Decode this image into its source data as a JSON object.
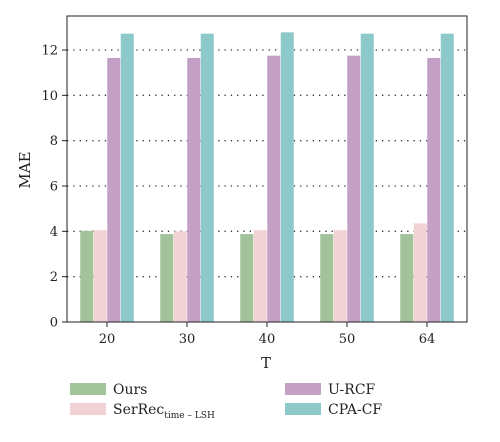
{
  "chart_data": {
    "type": "bar",
    "xlabel": "T",
    "ylabel": "MAE",
    "categories": [
      "20",
      "30",
      "40",
      "50",
      "64"
    ],
    "ylim": [
      0,
      13.5
    ],
    "yticks": [
      "0",
      "2",
      "4",
      "6",
      "8",
      "10",
      "12"
    ],
    "grid": "horizontal dotted",
    "legend_position": "bottom",
    "series": [
      {
        "name": "Ours",
        "legend_main": "SerRec",
        "color": "#a3c49a",
        "values": [
          4.02,
          3.88,
          3.88,
          3.88,
          3.88
        ]
      },
      {
        "name": "SerRec time – LSH",
        "legend_main": "SerRec",
        "legend_sub": "time – LSH",
        "color": "#f1d2d5",
        "values": [
          4.05,
          4.0,
          4.05,
          4.05,
          4.35
        ]
      },
      {
        "name": "U-RCF",
        "color": "#c3a0c4",
        "values": [
          11.65,
          11.65,
          11.75,
          11.75,
          11.65
        ]
      },
      {
        "name": "CPA-CF",
        "color": "#8dc9c9",
        "values": [
          12.72,
          12.72,
          12.78,
          12.72,
          12.72
        ]
      }
    ]
  }
}
